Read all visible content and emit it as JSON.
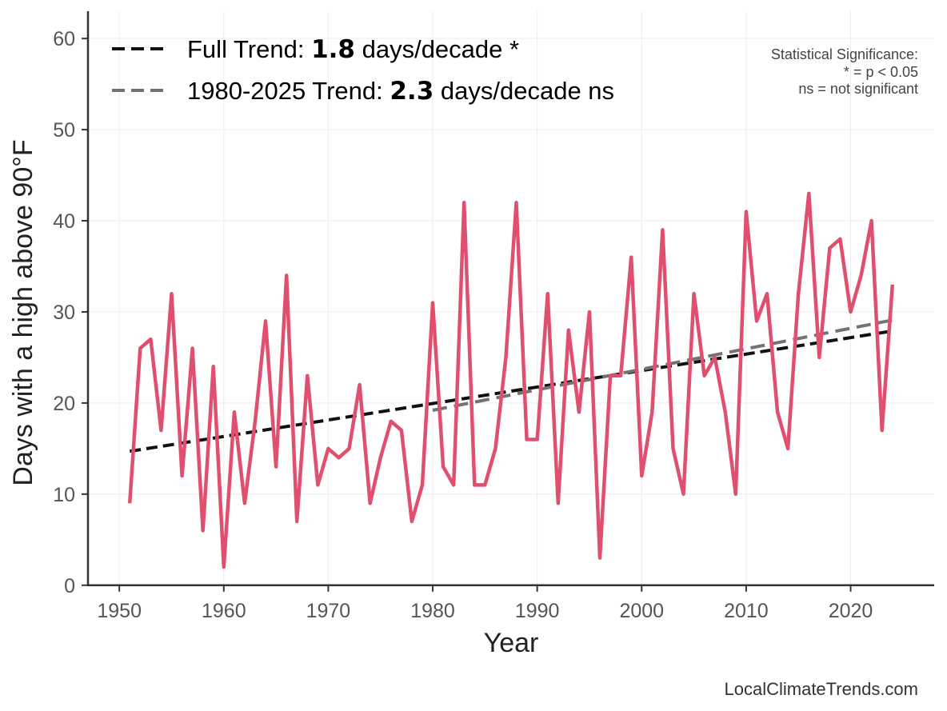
{
  "chart_data": {
    "type": "line",
    "title": "",
    "xlabel": "Year",
    "ylabel": "Days with a high above 90°F",
    "xlim": [
      1947,
      2028
    ],
    "ylim": [
      0,
      63
    ],
    "xticks": [
      1950,
      1960,
      1970,
      1980,
      1990,
      2000,
      2010,
      2020
    ],
    "yticks": [
      0,
      10,
      20,
      30,
      40,
      50,
      60
    ],
    "grid": true,
    "series": [
      {
        "name": "Days with a high above 90°F",
        "color": "#e0506e",
        "x": [
          1951,
          1952,
          1953,
          1954,
          1955,
          1956,
          1957,
          1958,
          1959,
          1960,
          1961,
          1962,
          1963,
          1964,
          1965,
          1966,
          1967,
          1968,
          1969,
          1970,
          1971,
          1972,
          1973,
          1974,
          1975,
          1976,
          1977,
          1978,
          1979,
          1980,
          1981,
          1982,
          1983,
          1984,
          1985,
          1986,
          1987,
          1988,
          1989,
          1990,
          1991,
          1992,
          1993,
          1994,
          1995,
          1996,
          1997,
          1998,
          1999,
          2000,
          2001,
          2002,
          2003,
          2004,
          2005,
          2006,
          2007,
          2008,
          2009,
          2010,
          2011,
          2012,
          2013,
          2014,
          2015,
          2016,
          2017,
          2018,
          2019,
          2020,
          2021,
          2022,
          2023,
          2024
        ],
        "values": [
          9,
          26,
          27,
          17,
          32,
          12,
          26,
          6,
          24,
          2,
          19,
          9,
          18,
          29,
          13,
          34,
          7,
          23,
          11,
          15,
          14,
          15,
          22,
          9,
          14,
          18,
          17,
          7,
          11,
          31,
          13,
          11,
          42,
          11,
          11,
          15,
          25,
          42,
          16,
          16,
          32,
          9,
          28,
          19,
          30,
          3,
          23,
          23,
          36,
          12,
          19,
          39,
          15,
          10,
          32,
          23,
          25,
          19,
          10,
          41,
          29,
          32,
          19,
          15,
          32,
          43,
          25,
          37,
          38,
          30,
          34,
          40,
          17,
          33
        ]
      }
    ],
    "trends": [
      {
        "name": "Full Trend",
        "color": "#111111",
        "x": [
          1951,
          2024
        ],
        "y": [
          14.7,
          27.9
        ],
        "dash": "tight"
      },
      {
        "name": "1980-2025 Trend",
        "color": "#737373",
        "x": [
          1980,
          2024
        ],
        "y": [
          19.2,
          29.1
        ],
        "dash": "wide"
      }
    ],
    "legend": {
      "placement": "top-left",
      "entries": [
        {
          "prefix": "Full Trend: ",
          "value": "1.8",
          "suffix": " days/decade *"
        },
        {
          "prefix": "1980-2025 Trend: ",
          "value": "2.3",
          "suffix": " days/decade ns"
        }
      ]
    },
    "annotation": {
      "placement": "top-right",
      "lines": [
        "Statistical Significance:",
        "* = p < 0.05",
        "ns = not significant"
      ]
    },
    "credit": "LocalClimateTrends.com"
  }
}
